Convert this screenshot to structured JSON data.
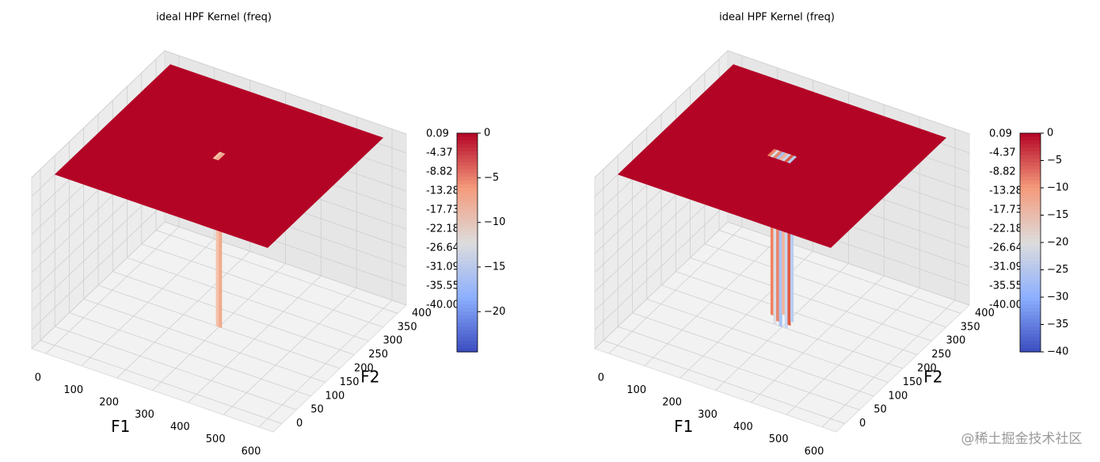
{
  "chart_data": [
    {
      "type": "surface",
      "title": "ideal HPF Kernel (freq)",
      "xlabel": "F1",
      "ylabel": "F2",
      "xlim": [
        -40,
        640
      ],
      "ylim": [
        -30,
        430
      ],
      "zlim": [
        -40,
        0.09
      ],
      "xticks": [
        0,
        100,
        200,
        300,
        400,
        500,
        600
      ],
      "yticks": [
        0,
        50,
        100,
        150,
        200,
        250,
        300,
        350,
        400
      ],
      "zticks": [
        0.09,
        -4.37,
        -8.82,
        -13.28,
        -17.73,
        -22.18,
        -26.64,
        -31.09,
        -35.55,
        {
          "value": -40,
          "label": "-40.00"
        }
      ],
      "plane": {
        "x": [
          0,
          600
        ],
        "y": [
          0,
          400
        ],
        "z": 0,
        "color": "#b40426"
      },
      "wells": {
        "values": [
          -40,
          -40
        ],
        "colors": [
          "#f4c2a8",
          "#f0ab8e"
        ]
      },
      "colorbar": {
        "clim": [
          -24.5,
          0
        ],
        "ticks": [
          0,
          {
            "value": -5,
            "label": "−5"
          },
          {
            "value": -10,
            "label": "−10"
          },
          {
            "value": -15,
            "label": "−15"
          },
          {
            "value": -20,
            "label": "−20"
          }
        ]
      }
    },
    {
      "type": "surface",
      "title": "ideal HPF Kernel (freq)",
      "xlabel": "F1",
      "ylabel": "F2",
      "xlim": [
        -40,
        640
      ],
      "ylim": [
        -30,
        430
      ],
      "zlim": [
        -40,
        0.09
      ],
      "xticks": [
        0,
        100,
        200,
        300,
        400,
        500,
        600
      ],
      "yticks": [
        0,
        50,
        100,
        150,
        200,
        250,
        300,
        350,
        400
      ],
      "zticks": [
        0.09,
        -4.37,
        -8.82,
        -13.28,
        -17.73,
        -22.18,
        -26.64,
        -31.09,
        -35.55,
        {
          "value": -40,
          "label": "-40.00"
        }
      ],
      "plane": {
        "x": [
          0,
          600
        ],
        "y": [
          0,
          400
        ],
        "z": 0,
        "color": "#b40426"
      },
      "wells": {
        "values": [
          -38,
          -40,
          -39,
          -40,
          -37,
          -40,
          -39,
          -38
        ],
        "colors": [
          "#f08060",
          "#dcdde2",
          "#e8866a",
          "#a8c4f4",
          "#f4b49a",
          "#c8d8f0",
          "#e05a44",
          "#b8cdf0"
        ]
      },
      "colorbar": {
        "clim": [
          -40,
          0
        ],
        "ticks": [
          0,
          {
            "value": -5,
            "label": "−5"
          },
          {
            "value": -10,
            "label": "−10"
          },
          {
            "value": -15,
            "label": "−15"
          },
          {
            "value": -20,
            "label": "−20"
          },
          {
            "value": -25,
            "label": "−25"
          },
          {
            "value": -30,
            "label": "−30"
          },
          {
            "value": -35,
            "label": "−35"
          },
          {
            "value": -40,
            "label": "−40"
          }
        ]
      }
    }
  ],
  "watermark": "@稀土掘金技术社区"
}
